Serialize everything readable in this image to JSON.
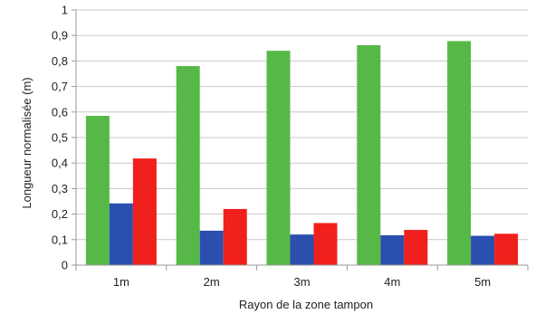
{
  "chart_data": {
    "type": "bar",
    "categories": [
      "1m",
      "2m",
      "3m",
      "4m",
      "5m"
    ],
    "series": [
      {
        "color": "#56b947",
        "values": [
          0.585,
          0.78,
          0.84,
          0.862,
          0.878
        ]
      },
      {
        "color": "#2b4fae",
        "values": [
          0.242,
          0.135,
          0.12,
          0.117,
          0.115
        ]
      },
      {
        "color": "#f0201c",
        "values": [
          0.418,
          0.22,
          0.165,
          0.138,
          0.123
        ]
      }
    ],
    "xlabel": "Rayon de la zone tampon",
    "ylabel": "Longueur normalisée (m)",
    "ylim": [
      0,
      1
    ],
    "yticks": [
      "0",
      "0,1",
      "0,2",
      "0,3",
      "0,4",
      "0,5",
      "0,6",
      "0,7",
      "0,8",
      "0,9",
      "1"
    ],
    "grid": true,
    "legend": "none"
  }
}
